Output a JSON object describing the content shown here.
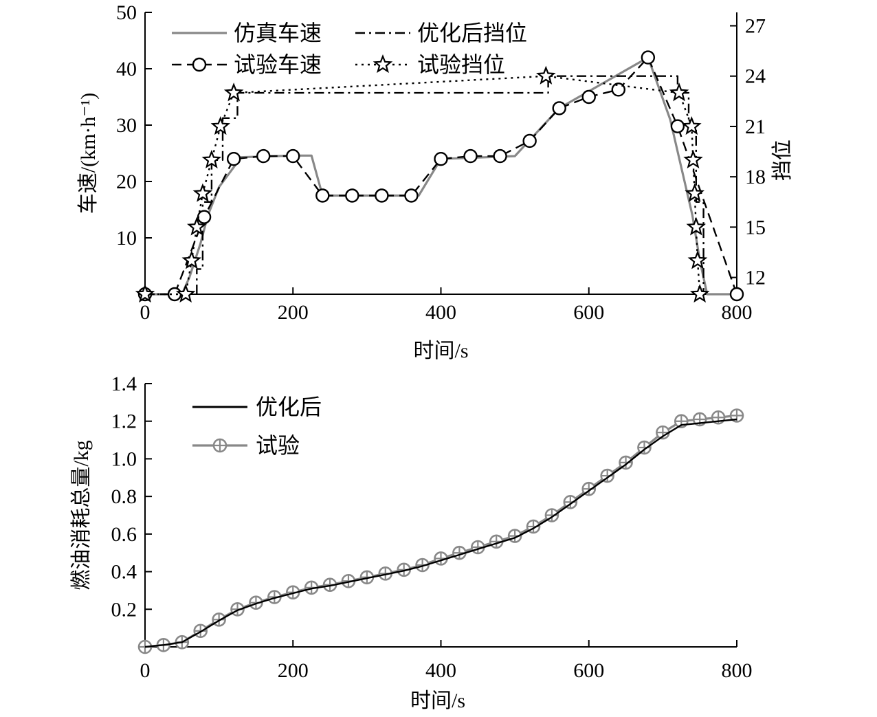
{
  "chart_data": [
    {
      "type": "line",
      "xlabel": "时间/s",
      "ylabel": "车速/(km·h⁻¹)",
      "y2label": "挡位",
      "xlim": [
        0,
        800
      ],
      "ylim": [
        0,
        50
      ],
      "y2lim": [
        11,
        27.8
      ],
      "xticks": [
        "0",
        "200",
        "400",
        "600",
        "800"
      ],
      "yticks": [
        "10",
        "20",
        "30",
        "40",
        "50"
      ],
      "y2ticks": [
        "12",
        "15",
        "18",
        "21",
        "24",
        "27"
      ],
      "legend": [
        "仿真车速",
        "优化后挡位",
        "试验车速",
        "试验挡位"
      ],
      "legend_position": "top-left",
      "series": [
        {
          "name": "仿真车速",
          "axis": "left",
          "color": "#888888",
          "style": "solid",
          "x": [
            0,
            50,
            60,
            75,
            85,
            100,
            130,
            200,
            225,
            240,
            370,
            400,
            500,
            560,
            680,
            710,
            740,
            750,
            760,
            800
          ],
          "y": [
            0,
            0,
            3,
            9,
            14,
            19,
            24.3,
            24.6,
            24.6,
            17.5,
            17.5,
            24,
            24.5,
            33,
            42,
            31,
            14,
            6,
            0,
            0
          ]
        },
        {
          "name": "优化后挡位",
          "axis": "right",
          "color": "#000000",
          "style": "dashdot",
          "x": [
            70,
            70,
            78,
            78,
            90,
            90,
            105,
            105,
            125,
            125,
            545,
            545,
            720,
            720,
            735,
            735,
            745,
            745,
            755,
            755
          ],
          "y": [
            11,
            12.5,
            12.5,
            16.5,
            16.5,
            19,
            19,
            21.5,
            21.5,
            23,
            23,
            24,
            24,
            23,
            23,
            21,
            21,
            16.5,
            16.5,
            11
          ]
        },
        {
          "name": "试验车速",
          "axis": "left",
          "color": "#000000",
          "style": "dashed",
          "marker": "circle",
          "x": [
            0,
            40,
            80,
            120,
            160,
            200,
            240,
            280,
            320,
            360,
            400,
            440,
            480,
            520,
            560,
            600,
            640,
            680,
            720,
            800
          ],
          "y": [
            0,
            0,
            13.7,
            24,
            24.5,
            24.5,
            17.5,
            17.5,
            17.5,
            17.5,
            24,
            24.5,
            24.5,
            27.2,
            33,
            35,
            36.3,
            42,
            29.8,
            0
          ]
        },
        {
          "name": "试验挡位",
          "axis": "right",
          "color": "#000000",
          "style": "dotted",
          "marker": "star",
          "x": [
            0,
            55,
            63,
            70,
            78,
            90,
            102,
            120,
            542,
            722,
            739,
            741,
            743,
            745,
            747,
            750
          ],
          "y": [
            11,
            11,
            13,
            15,
            17,
            19,
            21,
            23,
            24,
            23,
            21,
            19,
            17,
            15,
            13,
            11
          ]
        }
      ]
    },
    {
      "type": "line",
      "xlabel": "时间/s",
      "ylabel": "燃油消耗总量/kg",
      "xlim": [
        0,
        800
      ],
      "ylim": [
        0,
        1.4
      ],
      "xticks": [
        "0",
        "200",
        "400",
        "600",
        "800"
      ],
      "yticks": [
        "0.2",
        "0.4",
        "0.6",
        "0.8",
        "1.0",
        "1.2",
        "1.4"
      ],
      "legend": [
        "优化后",
        "试验"
      ],
      "legend_position": "top-left",
      "series": [
        {
          "name": "优化后",
          "color": "#000000",
          "style": "solid",
          "x": [
            0,
            25,
            50,
            75,
            100,
            125,
            150,
            175,
            200,
            225,
            250,
            275,
            300,
            325,
            350,
            375,
            400,
            425,
            450,
            475,
            500,
            525,
            550,
            575,
            600,
            625,
            650,
            675,
            700,
            725,
            750,
            775,
            800
          ],
          "y": [
            0,
            0.01,
            0.025,
            0.08,
            0.14,
            0.195,
            0.23,
            0.26,
            0.285,
            0.31,
            0.325,
            0.345,
            0.365,
            0.385,
            0.405,
            0.43,
            0.46,
            0.49,
            0.52,
            0.55,
            0.58,
            0.63,
            0.69,
            0.76,
            0.83,
            0.9,
            0.97,
            1.05,
            1.12,
            1.18,
            1.19,
            1.2,
            1.21
          ]
        },
        {
          "name": "试验",
          "color": "#888888",
          "style": "solid",
          "marker": "crossed-circle",
          "x": [
            0,
            25,
            50,
            75,
            100,
            125,
            150,
            175,
            200,
            225,
            250,
            275,
            300,
            325,
            350,
            375,
            400,
            425,
            450,
            475,
            500,
            525,
            550,
            575,
            600,
            625,
            650,
            675,
            700,
            725,
            750,
            775,
            800
          ],
          "y": [
            0,
            0.01,
            0.025,
            0.085,
            0.145,
            0.2,
            0.235,
            0.265,
            0.29,
            0.315,
            0.33,
            0.35,
            0.37,
            0.39,
            0.41,
            0.435,
            0.47,
            0.5,
            0.53,
            0.56,
            0.59,
            0.64,
            0.7,
            0.77,
            0.84,
            0.91,
            0.98,
            1.06,
            1.14,
            1.2,
            1.21,
            1.22,
            1.23
          ]
        }
      ]
    }
  ]
}
